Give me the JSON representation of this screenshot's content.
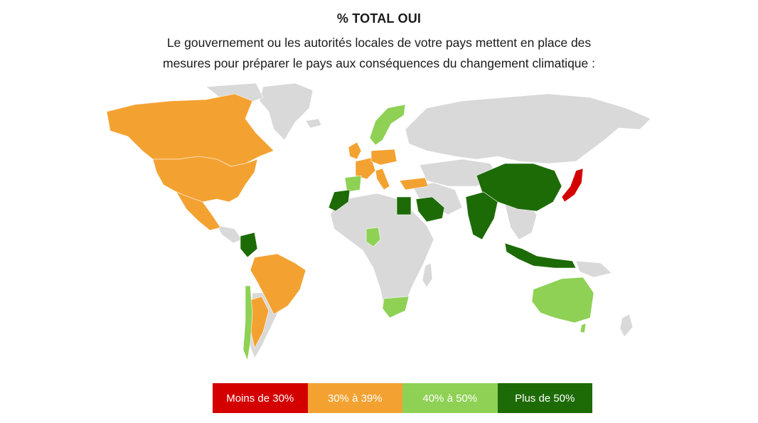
{
  "header": {
    "title": "% TOTAL OUI",
    "subtitle_line1": "Le gouvernement ou les autorités locales de votre pays mettent en place des",
    "subtitle_line2": "mesures pour préparer le pays aux conséquences du changement climatique :"
  },
  "legend": [
    {
      "label": "Moins de 30%",
      "color": "#d40000"
    },
    {
      "label": "30% à 39%",
      "color": "#f3a232"
    },
    {
      "label": "40% à 50%",
      "color": "#8ed155"
    },
    {
      "label": "Plus de 50%",
      "color": "#1d6b06"
    }
  ],
  "colors": {
    "no_data": "#d9d9d9",
    "lt30": "#d40000",
    "r30_39": "#f3a232",
    "r40_50": "#8ed155",
    "gt50": "#1d6b06"
  }
}
